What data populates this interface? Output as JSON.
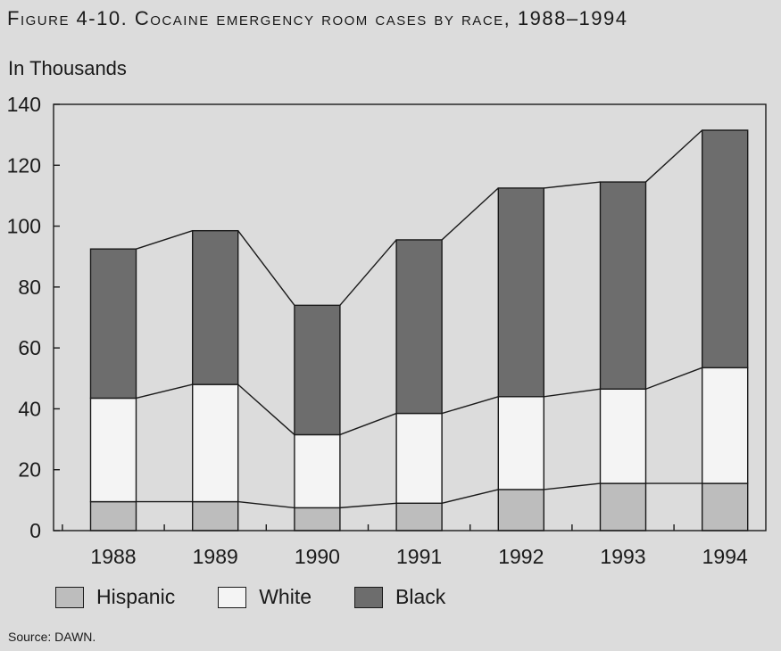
{
  "figure": {
    "title": "Figure 4-10. Cocaine emergency room cases by race, 1988–1994",
    "units": "In Thousands",
    "source": "Source: DAWN."
  },
  "colors": {
    "background": "#dcdcdc",
    "Hispanic": "#bdbdbd",
    "White": "#f4f4f4",
    "Black": "#6d6d6d",
    "line": "#1a1a1a"
  },
  "chart_data": {
    "type": "bar",
    "stacked": true,
    "connector_lines": true,
    "categories": [
      "1988",
      "1989",
      "1990",
      "1991",
      "1992",
      "1993",
      "1994"
    ],
    "series": [
      {
        "name": "Hispanic",
        "values": [
          9.5,
          9.5,
          7.5,
          9,
          13.5,
          15.5,
          15.5
        ]
      },
      {
        "name": "White",
        "values": [
          34,
          38.5,
          24,
          29.5,
          30.5,
          31,
          38
        ]
      },
      {
        "name": "Black",
        "values": [
          49,
          50.5,
          42.5,
          57,
          68.5,
          68,
          78
        ]
      }
    ],
    "yticks": [
      0,
      20,
      40,
      60,
      80,
      100,
      120,
      140
    ],
    "ylim": [
      0,
      140
    ],
    "ylabel": "In Thousands",
    "grid": false,
    "legend_position": "bottom"
  }
}
